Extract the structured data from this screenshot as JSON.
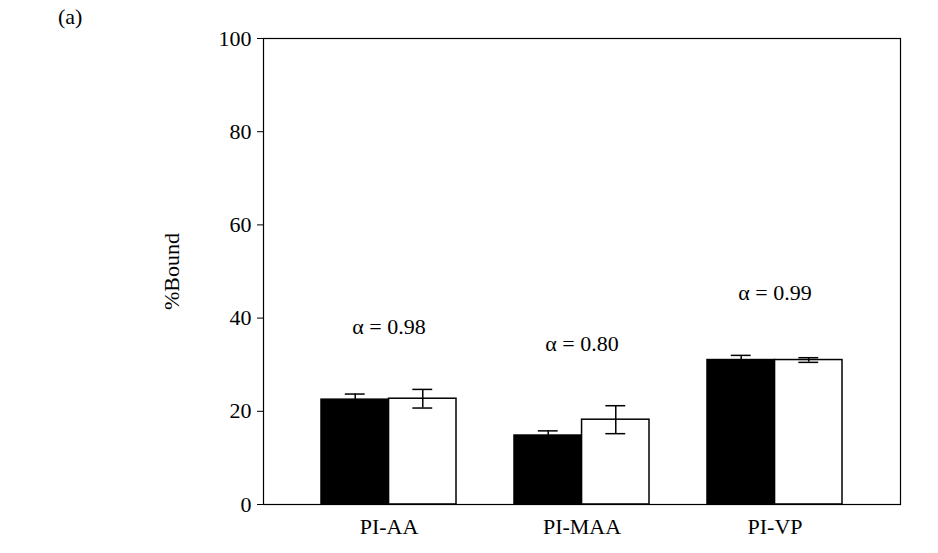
{
  "chart_data": {
    "type": "bar",
    "panel_label": "(a)",
    "y_label": "%Bound",
    "categories": [
      "PI-AA",
      "PI-MAA",
      "PI-VP"
    ],
    "series": [
      {
        "color": "#000000",
        "values": [
          22.5,
          14.8,
          31.0
        ],
        "errors": [
          1.2,
          1.0,
          1.0
        ]
      },
      {
        "color": "#ffffff",
        "values": [
          22.7,
          18.2,
          31.0
        ],
        "errors": [
          2.0,
          3.0,
          0.5
        ]
      }
    ],
    "annotations": [
      "α = 0.98",
      "α = 0.80",
      "α = 0.99"
    ],
    "ylim": [
      0,
      100
    ],
    "yticks": [
      0,
      20,
      40,
      60,
      80,
      100
    ],
    "grid": false
  }
}
